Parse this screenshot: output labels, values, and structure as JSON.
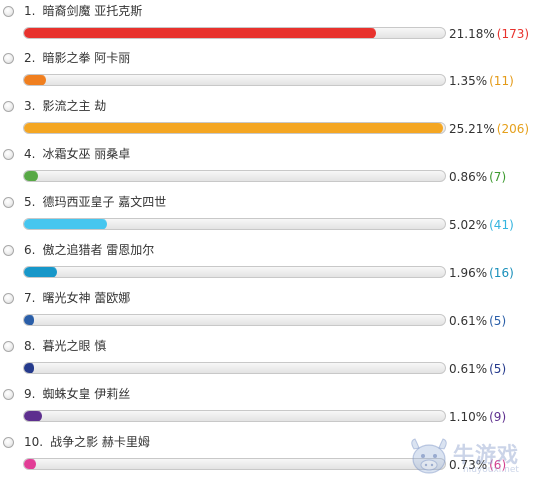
{
  "poll": {
    "options": [
      {
        "num": "1.",
        "label": "暗裔剑魔 亚托克斯",
        "percent": "21.18%",
        "count": "(173)",
        "value": 21.18,
        "color": "#e8322d",
        "count_color": "#e8322d"
      },
      {
        "num": "2.",
        "label": "暗影之拳 阿卡丽",
        "percent": "1.35%",
        "count": "(11)",
        "value": 1.35,
        "color": "#f07f1f",
        "count_color": "#e39a18"
      },
      {
        "num": "3.",
        "label": "影流之主 劫",
        "percent": "25.21%",
        "count": "(206)",
        "value": 25.21,
        "color": "#f4a622",
        "count_color": "#e5a01c"
      },
      {
        "num": "4.",
        "label": "冰霜女巫 丽桑卓",
        "percent": "0.86%",
        "count": "(7)",
        "value": 0.86,
        "color": "#57a845",
        "count_color": "#3c9a2f"
      },
      {
        "num": "5.",
        "label": "德玛西亚皇子 嘉文四世",
        "percent": "5.02%",
        "count": "(41)",
        "value": 5.02,
        "color": "#46c6ef",
        "count_color": "#34b4df"
      },
      {
        "num": "6.",
        "label": "傲之追猎者 雷恩加尔",
        "percent": "1.96%",
        "count": "(16)",
        "value": 1.96,
        "color": "#1797c9",
        "count_color": "#198fba"
      },
      {
        "num": "7.",
        "label": "曙光女神 蕾欧娜",
        "percent": "0.61%",
        "count": "(5)",
        "value": 0.61,
        "color": "#2a5ea8",
        "count_color": "#2a5ea8"
      },
      {
        "num": "8.",
        "label": "暮光之眼 慎",
        "percent": "0.61%",
        "count": "(5)",
        "value": 0.61,
        "color": "#253a8c",
        "count_color": "#253a8c"
      },
      {
        "num": "9.",
        "label": "蜘蛛女皇 伊莉丝",
        "percent": "1.10%",
        "count": "(9)",
        "value": 1.1,
        "color": "#5d2f8e",
        "count_color": "#5d2f8e"
      },
      {
        "num": "10.",
        "label": "战争之影 赫卡里姆",
        "percent": "0.73%",
        "count": "(6)",
        "value": 0.73,
        "color": "#e23d96",
        "count_color": "#d33f8f"
      }
    ],
    "max_value": 100
  },
  "watermark": {
    "text": "牛游戏",
    "sub": "niuyouxi.net"
  }
}
